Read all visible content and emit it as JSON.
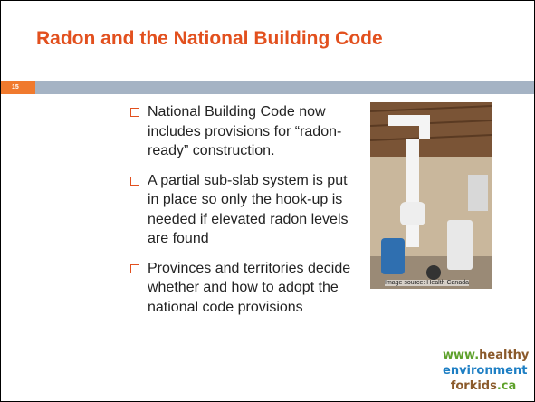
{
  "slide": {
    "title": "Radon and the National Building Code",
    "number": "15",
    "bullets": [
      "National Building Code now includes provisions for “radon-ready” construction.",
      "A partial sub-slab system is put in place so only the hook-up is needed if elevated radon levels are found",
      "Provinces and territories decide whether and how to adopt the national code provisions"
    ],
    "image_caption": "Image source: Health Canada",
    "logo": {
      "www": "www.",
      "healthy": "healthy",
      "environment": "environment",
      "forkids": "forkids",
      "ca": ".ca"
    }
  }
}
